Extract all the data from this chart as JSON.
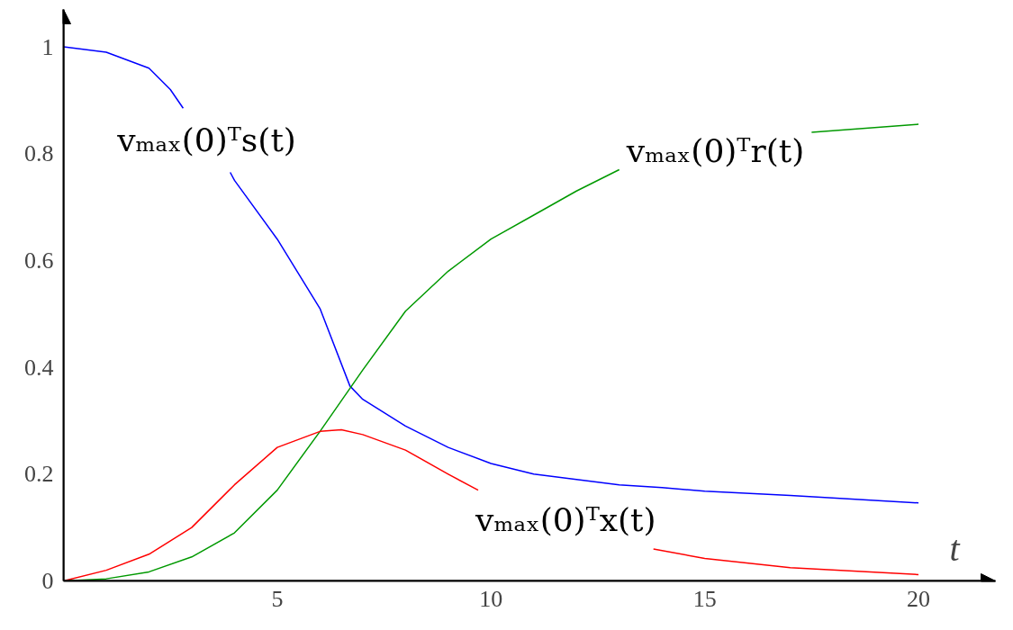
{
  "chart_data": {
    "type": "line",
    "xlabel": "t",
    "xlim": [
      0,
      21.8
    ],
    "ylim": [
      0,
      1.07
    ],
    "xticks": [
      5,
      10,
      15,
      20
    ],
    "yticks": [
      0,
      0.2,
      0.4,
      0.6,
      0.8,
      1
    ],
    "grid": false,
    "marker": "none",
    "line_style": "solid",
    "series": [
      {
        "name": "vₘₐₓ(0)ᵀs(t)",
        "color": "#0000ff",
        "x": [
          0,
          1,
          2,
          2.5,
          2.8,
          3.35,
          3.9,
          4,
          5,
          6,
          6.7,
          7,
          8,
          9,
          10,
          11,
          12,
          13,
          14,
          15,
          17,
          20
        ],
        "values": [
          1.0,
          0.99,
          0.96,
          0.92,
          0.885,
          null,
          0.765,
          0.75,
          0.64,
          0.51,
          0.365,
          0.34,
          0.29,
          0.25,
          0.22,
          0.2,
          0.19,
          0.18,
          0.175,
          0.168,
          0.16,
          0.146
        ]
      },
      {
        "name": "vₘₐₓ(0)ᵀr(t)",
        "color": "#009900",
        "x": [
          0,
          1,
          2,
          3,
          4,
          5,
          6,
          7,
          8,
          9,
          10,
          11,
          12,
          13,
          15.25,
          17.5,
          20
        ],
        "values": [
          0,
          0.004,
          0.017,
          0.045,
          0.09,
          0.17,
          0.28,
          0.395,
          0.505,
          0.58,
          0.64,
          0.685,
          0.73,
          0.77,
          null,
          0.84,
          0.855
        ]
      },
      {
        "name": "vₘₐₓ(0)ᵀx(t)",
        "color": "#ff0000",
        "x": [
          0,
          1,
          2,
          3,
          4,
          5,
          6,
          6.5,
          7,
          8,
          9,
          9.7,
          11.75,
          13.8,
          15,
          17,
          20
        ],
        "values": [
          0,
          0.02,
          0.05,
          0.1,
          0.18,
          0.25,
          0.28,
          0.283,
          0.274,
          0.245,
          0.2,
          0.17,
          null,
          0.06,
          0.042,
          0.025,
          0.012
        ]
      }
    ]
  }
}
